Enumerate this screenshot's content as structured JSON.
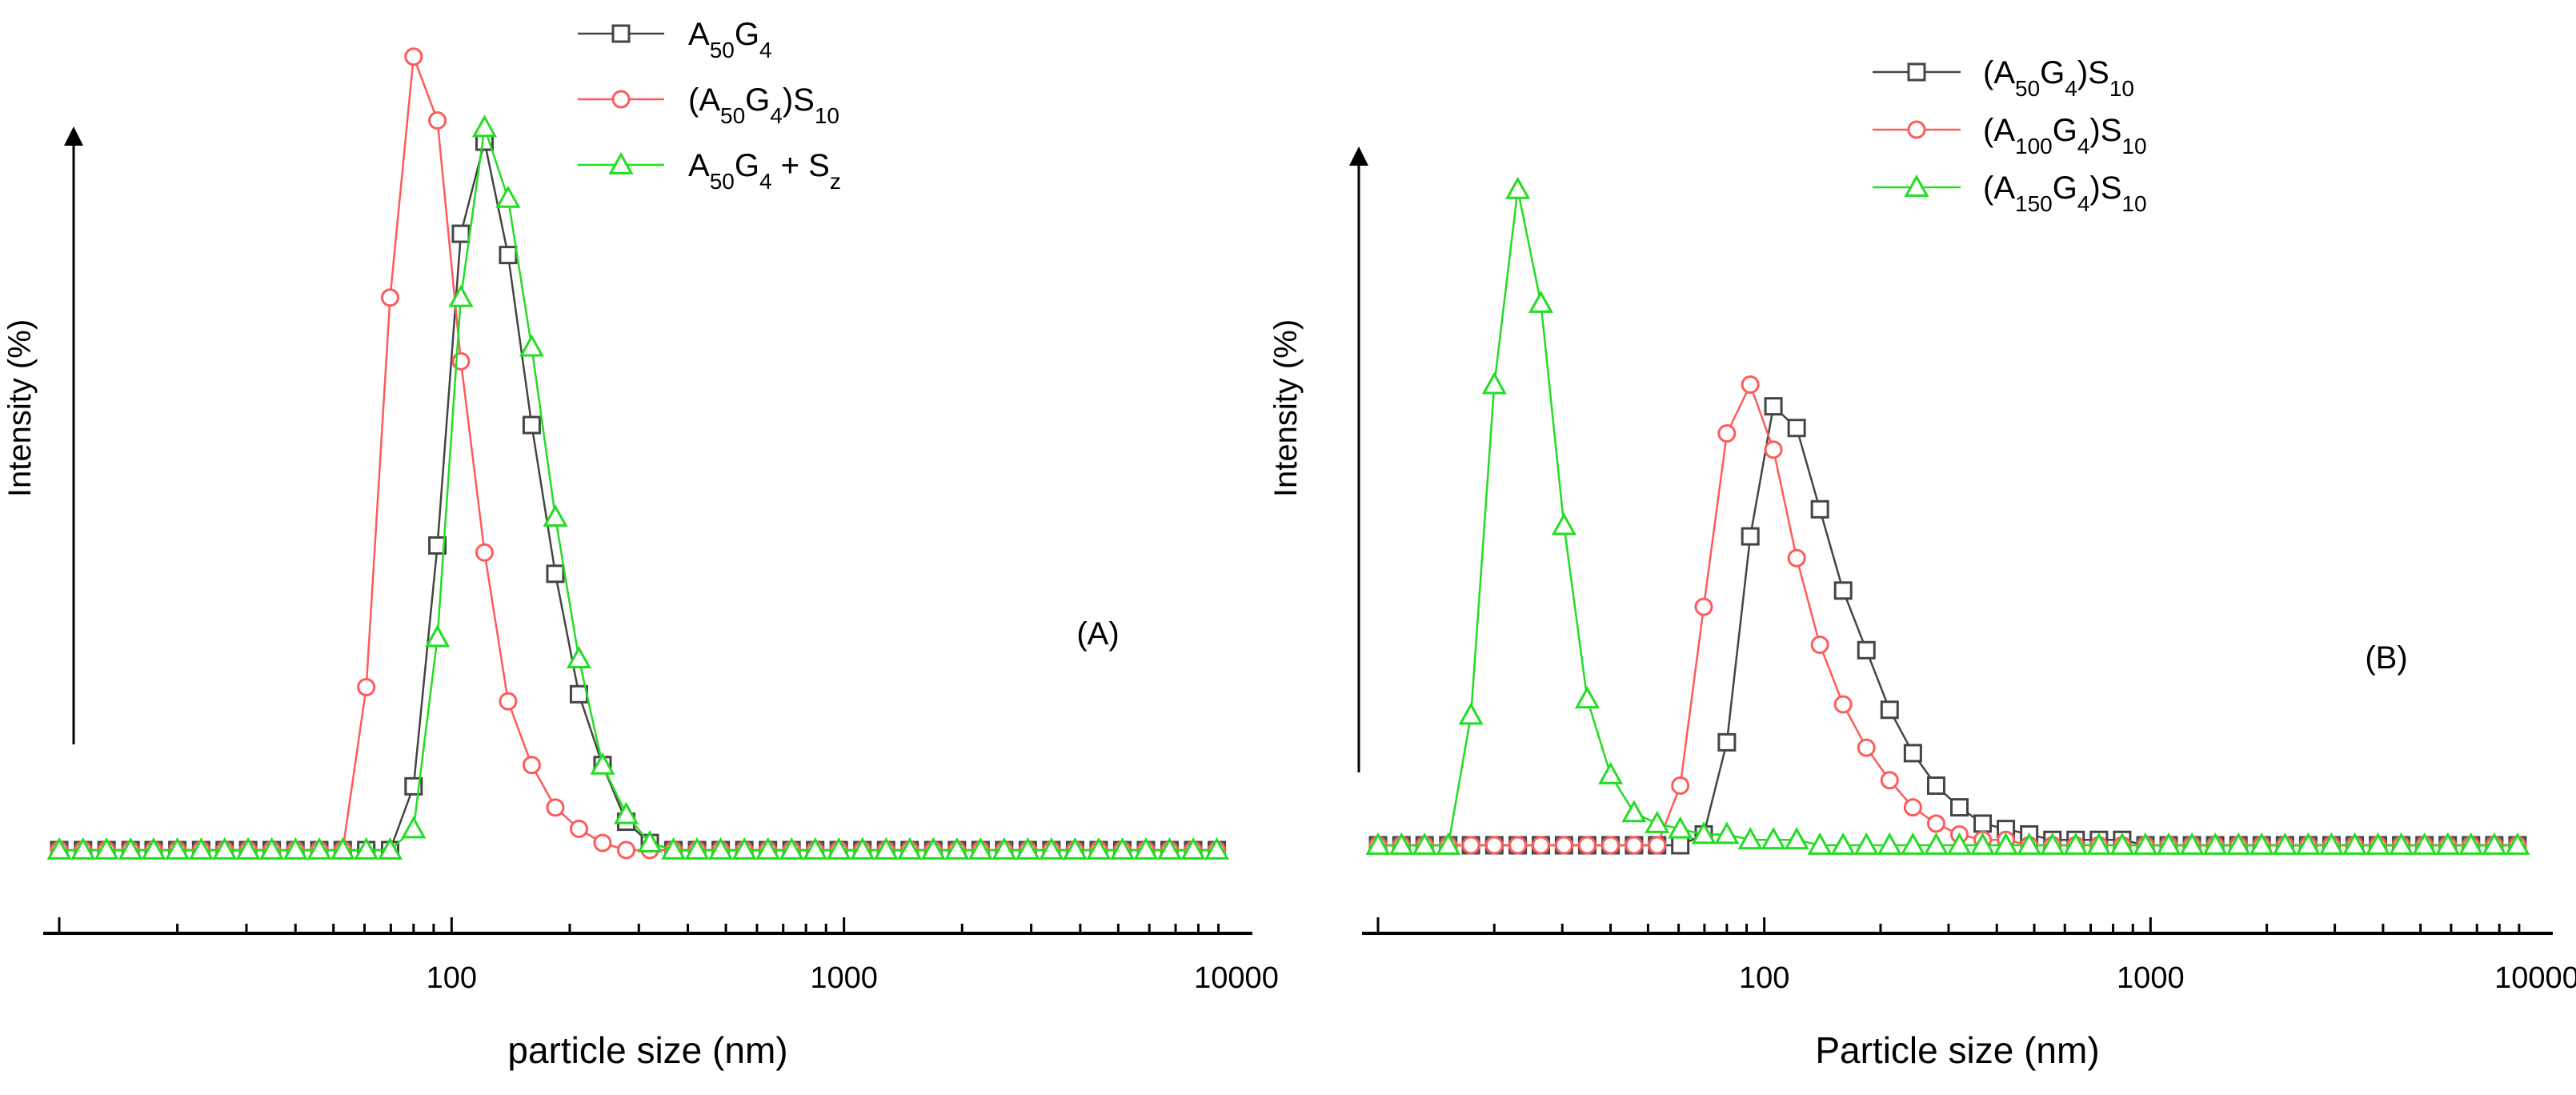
{
  "chart_data": [
    {
      "type": "line",
      "panel_label": "(A)",
      "xlabel": "particle size (nm)",
      "ylabel": "Intensity (%)",
      "xscale": "log",
      "xlim": [
        10,
        10000
      ],
      "ylim": [
        0,
        100
      ],
      "xticks": [
        "100",
        "1000",
        "10000"
      ],
      "legend_position": "top-center",
      "series": [
        {
          "name": "A50G4",
          "legend": {
            "main": "A",
            "sub1": "50",
            "mid": "G",
            "sub2": "4",
            "tail": "",
            "tailsub": ""
          },
          "color": "#444444",
          "marker": "square",
          "x": [
            10,
            11.5,
            13.2,
            15.2,
            17.4,
            20,
            23,
            26.4,
            30.3,
            34.8,
            40,
            46,
            52.8,
            60.6,
            69.7,
            80,
            92,
            105.6,
            121.3,
            139.3,
            160,
            183.8,
            211.1,
            242.5,
            278.6,
            320,
            367.6,
            422.2,
            485,
            557.2,
            640,
            735.2,
            844.5,
            970.1,
            1114.3,
            1280,
            1470.3,
            1689,
            1940.2,
            2228.7,
            2560,
            2940.7,
            3378,
            3880.4,
            4457.5,
            5120.3,
            5881.5,
            6756,
            7760.8,
            8915,
            10240.6
          ],
          "y": [
            0,
            0,
            0,
            0,
            0,
            0,
            0,
            0,
            0,
            0,
            0,
            0,
            0,
            0,
            0,
            9,
            43,
            87,
            100,
            84,
            60,
            39,
            22,
            12,
            4,
            1,
            0,
            0,
            0,
            0,
            0,
            0,
            0,
            0,
            0,
            0,
            0,
            0,
            0,
            0,
            0,
            0,
            0,
            0,
            0,
            0,
            0,
            0,
            0,
            0,
            0
          ]
        },
        {
          "name": "(A50G4)S10",
          "legend": {
            "main": "(A",
            "sub1": "50",
            "mid": "G",
            "sub2": "4",
            "tail": ")S",
            "tailsub": "10"
          },
          "color": "#ff5a5a",
          "marker": "circle",
          "x": [
            10,
            11.5,
            13.2,
            15.2,
            17.4,
            20,
            23,
            26.4,
            30.3,
            34.8,
            40,
            46,
            52.8,
            60.6,
            69.7,
            80,
            92,
            105.6,
            121.3,
            139.3,
            160,
            183.8,
            211.1,
            242.5,
            278.6,
            320,
            367.6,
            422.2,
            485,
            557.2,
            640,
            735.2,
            844.5,
            970.1,
            1114.3,
            1280,
            1470.3,
            1689,
            1940.2,
            2228.7,
            2560,
            2940.7,
            3378,
            3880.4,
            4457.5,
            5120.3,
            5881.5,
            6756,
            7760.8,
            8915,
            10240.6
          ],
          "y": [
            0,
            0,
            0,
            0,
            0,
            0,
            0,
            0,
            0,
            0,
            0,
            0,
            0,
            23,
            78,
            112,
            103,
            69,
            42,
            21,
            12,
            6,
            3,
            1,
            0,
            0,
            0,
            0,
            0,
            0,
            0,
            0,
            0,
            0,
            0,
            0,
            0,
            0,
            0,
            0,
            0,
            0,
            0,
            0,
            0,
            0,
            0,
            0,
            0,
            0,
            0
          ]
        },
        {
          "name": "A50G4 + Sz",
          "legend": {
            "main": "A",
            "sub1": "50",
            "mid": "G",
            "sub2": "4",
            "tail": " + S",
            "tailsub": "z"
          },
          "color": "#22dd22",
          "marker": "triangle",
          "x": [
            10,
            11.5,
            13.2,
            15.2,
            17.4,
            20,
            23,
            26.4,
            30.3,
            34.8,
            40,
            46,
            52.8,
            60.6,
            69.7,
            80,
            92,
            105.6,
            121.3,
            139.3,
            160,
            183.8,
            211.1,
            242.5,
            278.6,
            320,
            367.6,
            422.2,
            485,
            557.2,
            640,
            735.2,
            844.5,
            970.1,
            1114.3,
            1280,
            1470.3,
            1689,
            1940.2,
            2228.7,
            2560,
            2940.7,
            3378,
            3880.4,
            4457.5,
            5120.3,
            5881.5,
            6756,
            7760.8,
            8915,
            10240.6
          ],
          "y": [
            0,
            0,
            0,
            0,
            0,
            0,
            0,
            0,
            0,
            0,
            0,
            0,
            0,
            0,
            0,
            3,
            30,
            78,
            102,
            92,
            71,
            47,
            27,
            12,
            5,
            1,
            0,
            0,
            0,
            0,
            0,
            0,
            0,
            0,
            0,
            0,
            0,
            0,
            0,
            0,
            0,
            0,
            0,
            0,
            0,
            0,
            0,
            0,
            0,
            0,
            0
          ]
        }
      ]
    },
    {
      "type": "line",
      "panel_label": "(B)",
      "xlabel": "Particle size (nm)",
      "ylabel": "Intensity (%)",
      "xscale": "log",
      "xlim": [
        10,
        10000
      ],
      "ylim": [
        0,
        100
      ],
      "xticks": [
        "100",
        "1000",
        "10000"
      ],
      "legend_position": "top-center",
      "series": [
        {
          "name": "(A50G4)S10",
          "legend": {
            "main": "(A",
            "sub1": "50",
            "mid": "G",
            "sub2": "4",
            "tail": ")S",
            "tailsub": "10"
          },
          "color": "#444444",
          "marker": "square",
          "x": [
            10,
            11.5,
            13.2,
            15.2,
            17.4,
            20,
            23,
            26.4,
            30.3,
            34.8,
            40,
            46,
            52.8,
            60.6,
            69.7,
            80,
            92,
            105.6,
            121.3,
            139.3,
            160,
            183.8,
            211.1,
            242.5,
            278.6,
            320,
            367.6,
            422.2,
            485,
            557.2,
            640,
            735.2,
            844.5,
            970.1,
            1114.3,
            1280,
            1470.3,
            1689,
            1940.2,
            2228.7,
            2560,
            2940.7,
            3378,
            3880.4,
            4457.5,
            5120.3,
            5881.5,
            6756,
            7760.8,
            8915,
            10240.6
          ],
          "y": [
            0,
            0,
            0,
            0,
            0,
            0,
            0,
            0,
            0,
            0,
            0,
            0,
            0,
            0,
            2,
            19,
            57,
            81,
            77,
            62,
            47,
            36,
            25,
            17,
            11,
            7,
            4,
            3,
            2,
            1,
            1,
            1,
            1,
            0,
            0,
            0,
            0,
            0,
            0,
            0,
            0,
            0,
            0,
            0,
            0,
            0,
            0,
            0,
            0,
            0,
            0
          ]
        },
        {
          "name": "(A100G4)S10",
          "legend": {
            "main": "(A",
            "sub1": "100",
            "mid": "G",
            "sub2": "4",
            "tail": ")S",
            "tailsub": "10"
          },
          "color": "#ff5a5a",
          "marker": "circle",
          "x": [
            10,
            11.5,
            13.2,
            15.2,
            17.4,
            20,
            23,
            26.4,
            30.3,
            34.8,
            40,
            46,
            52.8,
            60.6,
            69.7,
            80,
            92,
            105.6,
            121.3,
            139.3,
            160,
            183.8,
            211.1,
            242.5,
            278.6,
            320,
            367.6,
            422.2,
            485,
            557.2,
            640,
            735.2,
            844.5,
            970.1,
            1114.3,
            1280,
            1470.3,
            1689,
            1940.2,
            2228.7,
            2560,
            2940.7,
            3378,
            3880.4,
            4457.5,
            5120.3,
            5881.5,
            6756,
            7760.8,
            8915,
            10240.6
          ],
          "y": [
            0,
            0,
            0,
            0,
            0,
            0,
            0,
            0,
            0,
            0,
            0,
            0,
            0,
            11,
            44,
            76,
            85,
            73,
            53,
            37,
            26,
            18,
            12,
            7,
            4,
            2,
            1,
            1,
            0,
            0,
            0,
            0,
            0,
            0,
            0,
            0,
            0,
            0,
            0,
            0,
            0,
            0,
            0,
            0,
            0,
            0,
            0,
            0,
            0,
            0,
            0
          ]
        },
        {
          "name": "(A150G4)S10",
          "legend": {
            "main": "(A",
            "sub1": "150",
            "mid": "G",
            "sub2": "4",
            "tail": ")S",
            "tailsub": "10"
          },
          "color": "#22dd22",
          "marker": "triangle",
          "x": [
            10,
            11.5,
            13.2,
            15.2,
            17.4,
            20,
            23,
            26.4,
            30.3,
            34.8,
            40,
            46,
            52.8,
            60.6,
            69.7,
            80,
            92,
            105.6,
            121.3,
            139.3,
            160,
            183.8,
            211.1,
            242.5,
            278.6,
            320,
            367.6,
            422.2,
            485,
            557.2,
            640,
            735.2,
            844.5,
            970.1,
            1114.3,
            1280,
            1470.3,
            1689,
            1940.2,
            2228.7,
            2560,
            2940.7,
            3378,
            3880.4,
            4457.5,
            5120.3,
            5881.5,
            6756,
            7760.8,
            8915,
            10240.6
          ],
          "y": [
            0,
            0,
            0,
            0,
            24,
            85,
            121,
            100,
            59,
            27,
            13,
            6,
            4,
            3,
            2,
            2,
            1,
            1,
            1,
            0,
            0,
            0,
            0,
            0,
            0,
            0,
            0,
            0,
            0,
            0,
            0,
            0,
            0,
            0,
            0,
            0,
            0,
            0,
            0,
            0,
            0,
            0,
            0,
            0,
            0,
            0,
            0,
            0,
            0,
            0,
            0
          ]
        }
      ]
    }
  ]
}
